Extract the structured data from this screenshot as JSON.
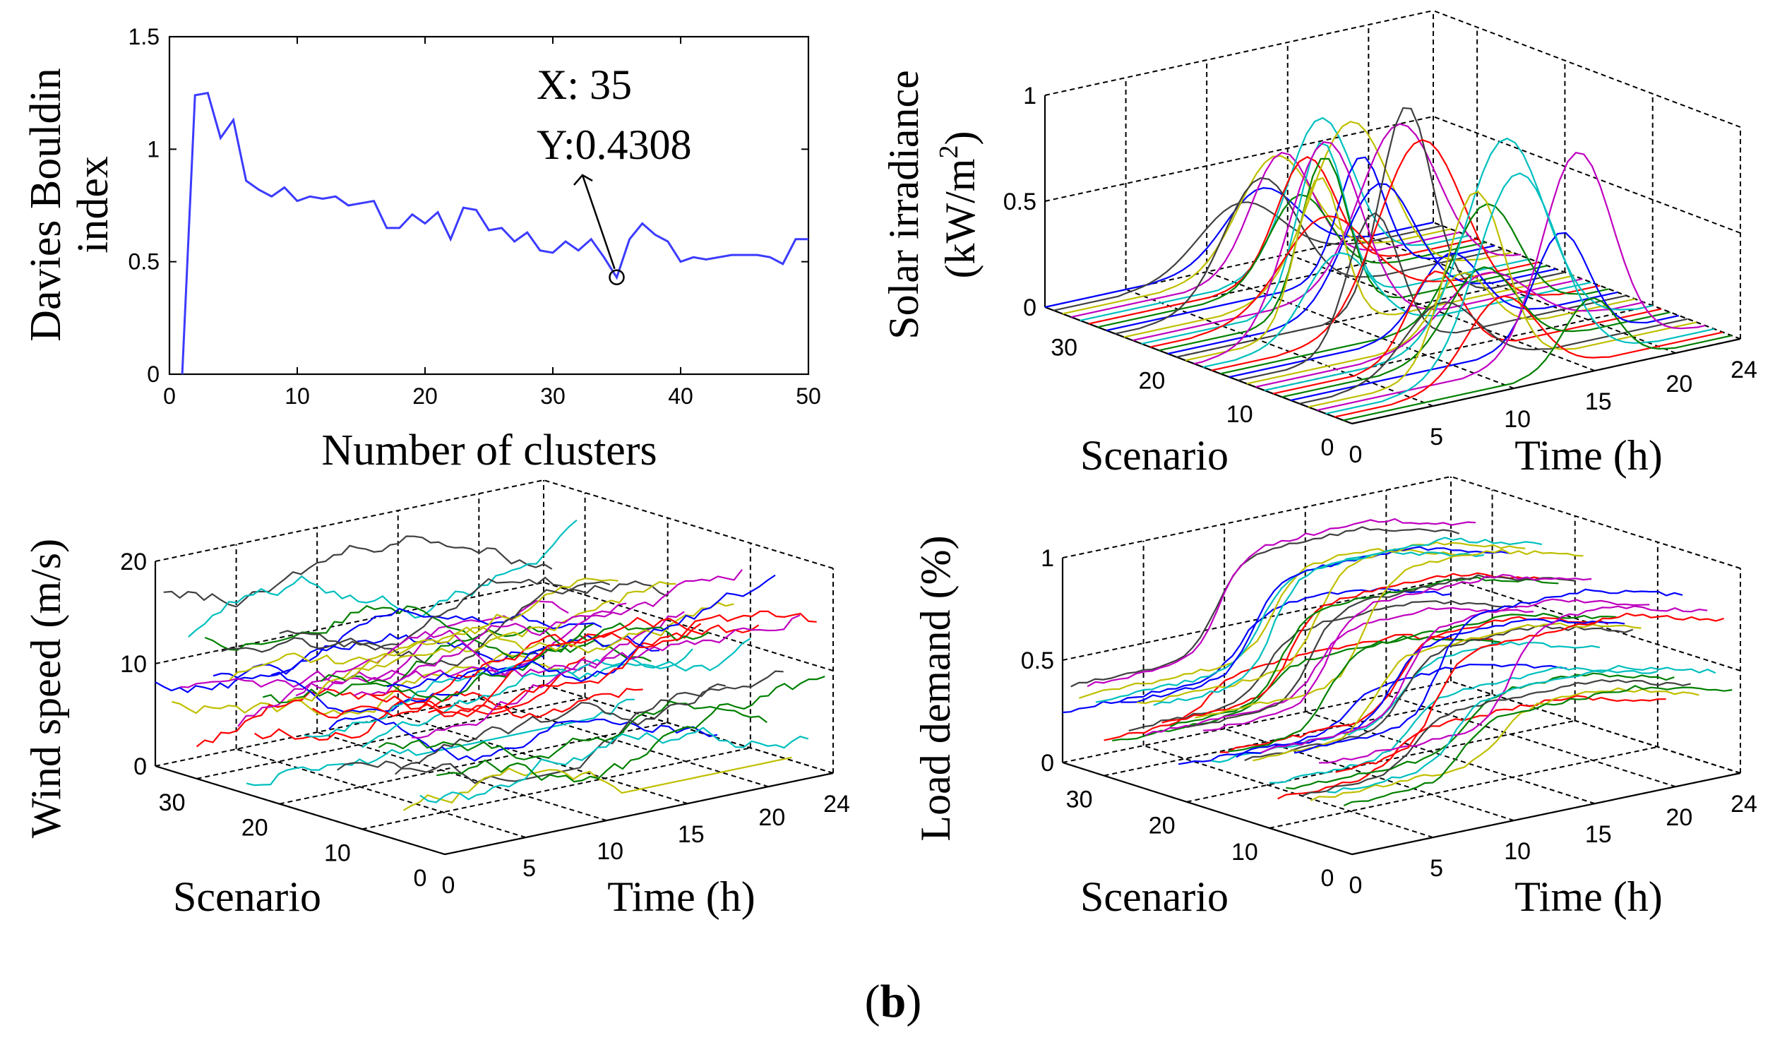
{
  "figure_label": "(b)",
  "chart_data": [
    {
      "type": "line",
      "id": "dbi",
      "title": "",
      "xlabel": "Number of clusters",
      "ylabel_line1": "Davies Bouldin",
      "ylabel_line2": "index",
      "xlim": [
        0,
        50
      ],
      "ylim": [
        0,
        1.5
      ],
      "xticks": [
        "0",
        "10",
        "20",
        "30",
        "40",
        "50"
      ],
      "yticks": [
        "0",
        "0.5",
        "1",
        "1.5"
      ],
      "series_color": "#3b3bff",
      "x": [
        1,
        2,
        3,
        4,
        5,
        6,
        7,
        8,
        9,
        10,
        11,
        12,
        13,
        14,
        15,
        16,
        17,
        18,
        19,
        20,
        21,
        22,
        23,
        24,
        25,
        26,
        27,
        28,
        29,
        30,
        31,
        32,
        33,
        34,
        35,
        36,
        37,
        38,
        39,
        40,
        41,
        42,
        43,
        44,
        45,
        46,
        47,
        48,
        49,
        50
      ],
      "y": [
        0,
        1.24,
        1.25,
        1.05,
        1.13,
        0.86,
        0.82,
        0.79,
        0.83,
        0.77,
        0.79,
        0.78,
        0.79,
        0.75,
        0.76,
        0.77,
        0.65,
        0.65,
        0.71,
        0.67,
        0.72,
        0.6,
        0.74,
        0.73,
        0.64,
        0.65,
        0.59,
        0.63,
        0.55,
        0.54,
        0.59,
        0.55,
        0.6,
        0.52,
        0.43,
        0.6,
        0.67,
        0.62,
        0.59,
        0.5,
        0.52,
        0.51,
        0.52,
        0.53,
        0.53,
        0.53,
        0.52,
        0.49,
        0.6,
        0.6
      ],
      "annotation": {
        "x": 35,
        "y": 0.4308,
        "line1": "X: 35",
        "line2": "Y:0.4308"
      }
    },
    {
      "type": "line3d",
      "id": "solar",
      "ylabel_line1": "Solar irradiance",
      "ylabel_line2": "(kW/m",
      "ylabel_sup": "2",
      "ylabel_close": ")",
      "scenario_label": "Scenario",
      "time_label": "Time (h)",
      "zticks": [
        "0",
        "0.5",
        "1"
      ],
      "scenario_ticks": [
        "0",
        "10",
        "20",
        "30"
      ],
      "time_ticks": [
        "0",
        "5",
        "10",
        "15",
        "20",
        "24"
      ],
      "scenarios": 35,
      "hours": 24,
      "zlim": [
        0,
        1
      ],
      "profile": "solar",
      "peak_range": [
        0.3,
        1.0
      ]
    },
    {
      "type": "line3d",
      "id": "wind",
      "ylabel_line1": "Wind speed (m/s)",
      "scenario_label": "Scenario",
      "time_label": "Time (h)",
      "zticks": [
        "0",
        "10",
        "20"
      ],
      "scenario_ticks": [
        "0",
        "10",
        "20",
        "30"
      ],
      "time_ticks": [
        "0",
        "5",
        "10",
        "15",
        "20",
        "24"
      ],
      "scenarios": 35,
      "hours": 24,
      "zlim": [
        0,
        20
      ],
      "profile": "wind",
      "level_range": [
        2,
        16
      ]
    },
    {
      "type": "line3d",
      "id": "load",
      "ylabel_line1": "Load demand (%)",
      "scenario_label": "Scenario",
      "time_label": "Time (h)",
      "zticks": [
        "0",
        "0.5",
        "1"
      ],
      "scenario_ticks": [
        "0",
        "10",
        "20",
        "30"
      ],
      "time_ticks": [
        "0",
        "5",
        "10",
        "15",
        "20",
        "24"
      ],
      "scenarios": 35,
      "hours": 24,
      "zlim": [
        0,
        1
      ],
      "profile": "load",
      "level_range": [
        0.35,
        0.95
      ]
    }
  ],
  "palette": [
    "#0000ff",
    "#008000",
    "#ff0000",
    "#00bfbf",
    "#bf00bf",
    "#bfbf00",
    "#404040"
  ]
}
